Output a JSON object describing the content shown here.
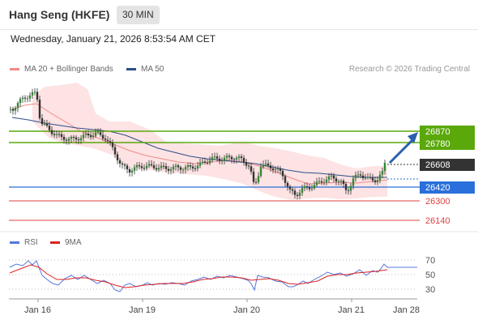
{
  "header": {
    "instrument": "Hang Seng (HKFE)",
    "period": "30 MIN",
    "datetime": "Wednesday, January 21, 2026 8:53:54 AM CET"
  },
  "legend": {
    "bollinger": "MA 20 + Bollinger Bands",
    "ma50": "MA 50",
    "copyright": "Research © 2026 Trading Central"
  },
  "rsi_legend": {
    "rsi": "RSI",
    "ma9": "9MA"
  },
  "colors": {
    "resistance": "#5aa80a",
    "support": "#2a6fdb",
    "target": "#e04040",
    "bollinger_fill": "#fde3e3",
    "ma20": "#f08a8a",
    "ma50": "#2a4f8a",
    "current": "#333333",
    "rsi": "#5577dd",
    "rsi_ma": "#dd2222"
  },
  "levels": [
    {
      "value": "26870",
      "kind": "resistance"
    },
    {
      "value": "26780",
      "kind": "resistance"
    },
    {
      "value": "26608",
      "kind": "current"
    },
    {
      "value": "26420",
      "kind": "support"
    },
    {
      "value": "26300",
      "kind": "target"
    },
    {
      "value": "26140",
      "kind": "target"
    }
  ],
  "rsi_ticks": [
    "70",
    "50",
    "30"
  ],
  "x_ticks": [
    "Jan 16",
    "Jan 19",
    "Jan 20",
    "Jan 21",
    "Jan 28"
  ]
}
